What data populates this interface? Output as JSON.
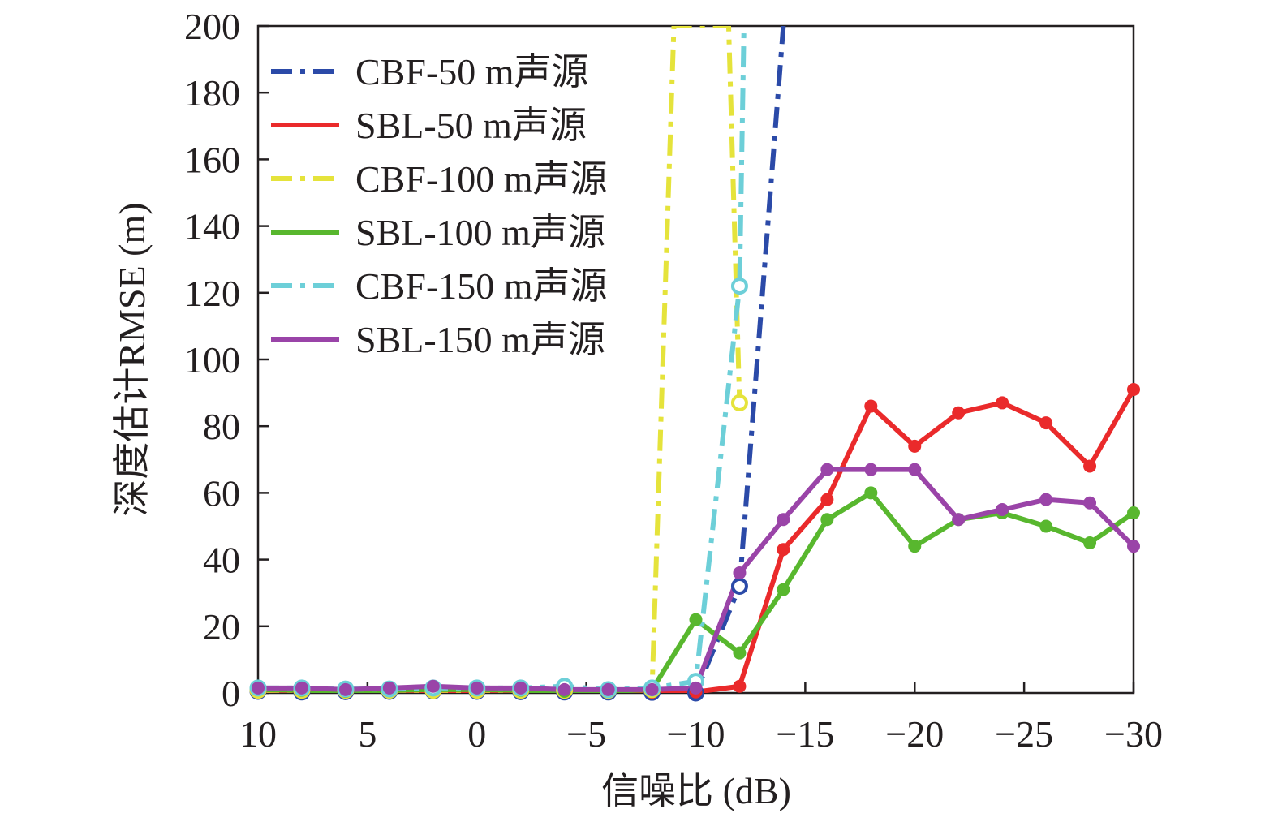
{
  "chart_data": {
    "type": "line",
    "xlabel": "信噪比 (dB)",
    "ylabel": "深度估计RMSE (m)",
    "xlim": [
      10,
      -30
    ],
    "ylim": [
      0,
      200
    ],
    "x_ticks": [
      10,
      5,
      0,
      -5,
      -10,
      -15,
      -20,
      -25,
      -30
    ],
    "x_tick_labels": [
      "10",
      "5",
      "0",
      "−5",
      "−10",
      "−15",
      "−20",
      "−25",
      "−30"
    ],
    "y_ticks": [
      0,
      20,
      40,
      60,
      80,
      100,
      120,
      140,
      160,
      180,
      200
    ],
    "y_tick_labels": [
      "0",
      "20",
      "40",
      "60",
      "80",
      "100",
      "120",
      "140",
      "160",
      "180",
      "200"
    ],
    "grid": false,
    "legend_position": "top-left",
    "series": [
      {
        "name": "CBF-50 m声源",
        "color": "#2b4aa8",
        "dash": "dashdot",
        "marker": "open-circle",
        "x": [
          10,
          8,
          6,
          4,
          2,
          0,
          -2,
          -4,
          -6,
          -8,
          -10,
          -12,
          -14
        ],
        "y": [
          0.5,
          0.3,
          0.4,
          0.5,
          0.6,
          0.5,
          0.4,
          0.3,
          0.3,
          0.2,
          0,
          32,
          200
        ]
      },
      {
        "name": "SBL-50 m声源",
        "color": "#ea2a2b",
        "dash": "solid",
        "marker": "filled-circle",
        "x": [
          10,
          8,
          6,
          4,
          2,
          0,
          -2,
          -4,
          -6,
          -8,
          -10,
          -12,
          -14,
          -16,
          -18,
          -20,
          -22,
          -24,
          -26,
          -28,
          -30
        ],
        "y": [
          0.3,
          0.2,
          0.2,
          0.3,
          0.5,
          0.3,
          0.3,
          0.2,
          0.2,
          0.2,
          0.3,
          2,
          43,
          58,
          86,
          74,
          84,
          87,
          81,
          68,
          91
        ]
      },
      {
        "name": "CBF-100 m声源",
        "color": "#e5e33b",
        "dash": "dashdot",
        "marker": "open-circle",
        "x": [
          10,
          8,
          6,
          4,
          2,
          0,
          -2,
          -4,
          -6,
          -8,
          -9,
          -11.5,
          -12
        ],
        "y": [
          0.8,
          0.8,
          0.8,
          0.8,
          0.8,
          0.8,
          0.8,
          0.8,
          0.8,
          1,
          200,
          200,
          87
        ]
      },
      {
        "name": "SBL-100 m声源",
        "color": "#58b72e",
        "dash": "solid",
        "marker": "filled-circle",
        "x": [
          10,
          8,
          6,
          4,
          2,
          0,
          -2,
          -4,
          -6,
          -8,
          -10,
          -12,
          -14,
          -16,
          -18,
          -20,
          -22,
          -24,
          -26,
          -28,
          -30
        ],
        "y": [
          1,
          0.8,
          0.5,
          0.8,
          1,
          1,
          0.8,
          0.5,
          0.5,
          1,
          22,
          12,
          31,
          52,
          60,
          44,
          52,
          54,
          50,
          45,
          54
        ]
      },
      {
        "name": "CBF-150 m声源",
        "color": "#6dcfd8",
        "dash": "dashdot",
        "marker": "open-circle",
        "x": [
          10,
          8,
          6,
          4,
          2,
          0,
          -2,
          -4,
          -6,
          -8,
          -10,
          -12,
          -12.2
        ],
        "y": [
          1.5,
          1.5,
          1.2,
          1.2,
          1.5,
          1.5,
          1.5,
          2,
          1,
          1.5,
          3.5,
          122,
          200
        ]
      },
      {
        "name": "SBL-150 m声源",
        "color": "#9a44a8",
        "dash": "solid",
        "marker": "filled-circle",
        "x": [
          10,
          8,
          6,
          4,
          2,
          0,
          -2,
          -4,
          -6,
          -8,
          -10,
          -12,
          -14,
          -16,
          -18,
          -20,
          -22,
          -24,
          -26,
          -28,
          -30
        ],
        "y": [
          1.5,
          1.5,
          1,
          1.5,
          2,
          1.5,
          1.5,
          1,
          1,
          1,
          1.5,
          36,
          52,
          67,
          67,
          67,
          52,
          55,
          58,
          57,
          44
        ]
      }
    ]
  }
}
